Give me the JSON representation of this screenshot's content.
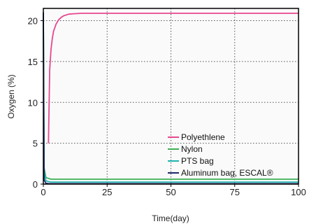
{
  "chart_data": {
    "type": "line",
    "title": "",
    "xlabel": "Time(day)",
    "ylabel": "Oxygen (%)",
    "xlim": [
      0,
      100
    ],
    "ylim": [
      0,
      21.5
    ],
    "x_ticks": [
      0,
      25,
      50,
      75,
      100
    ],
    "y_ticks": [
      0,
      5,
      10,
      15,
      20
    ],
    "grid": true,
    "legend_position": "lower-right",
    "series": [
      {
        "name": "Polyethlene",
        "color": "#e8478f",
        "x": [
          2,
          2.5,
          3,
          3.5,
          4,
          5,
          6,
          7,
          8,
          10,
          12,
          15,
          20,
          30,
          50,
          75,
          100
        ],
        "y": [
          5,
          14,
          16.5,
          17.8,
          18.7,
          19.6,
          20.1,
          20.4,
          20.6,
          20.8,
          20.85,
          20.9,
          20.9,
          20.9,
          20.9,
          20.9,
          20.9
        ]
      },
      {
        "name": "Nylon",
        "color": "#3fae57",
        "x": [
          0,
          0.3,
          1,
          2,
          3,
          100
        ],
        "y": [
          21,
          2,
          0.8,
          0.7,
          0.6,
          0.6
        ]
      },
      {
        "name": "PTS bag",
        "color": "#1fb3ad",
        "x": [
          0,
          0.3,
          1,
          2,
          3,
          100
        ],
        "y": [
          21,
          1.5,
          0.4,
          0.3,
          0.25,
          0.25
        ]
      },
      {
        "name": "Aluminum bag, ESCAL®",
        "color": "#1d2a6e",
        "x": [
          0,
          0.3,
          1,
          2,
          100
        ],
        "y": [
          21,
          0.5,
          0.1,
          0.05,
          0.05
        ]
      }
    ]
  }
}
